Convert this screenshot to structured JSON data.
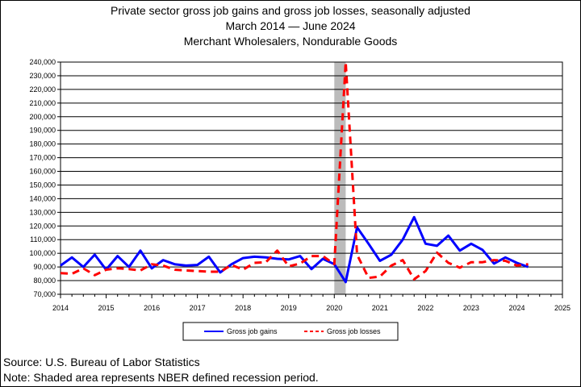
{
  "titles": {
    "line1": "Private sector gross job gains and gross job losses, seasonally adjusted",
    "line2": "March 2014  — June 2024",
    "line3": "Merchant Wholesalers, Nondurable Goods"
  },
  "footnotes": {
    "source": "Source: U.S. Bureau of Labor Statistics",
    "note": "Note: Shaded area represents NBER defined recession period."
  },
  "chart_data": {
    "type": "line",
    "title": "Private sector gross job gains and gross job losses, seasonally adjusted",
    "subtitle": "March 2014 — June 2024; Merchant Wholesalers, Nondurable Goods",
    "xlabel": "",
    "ylabel": "",
    "xlim": [
      2014,
      2025
    ],
    "ylim": [
      70000,
      240000
    ],
    "x_ticks": [
      2014,
      2015,
      2016,
      2017,
      2018,
      2019,
      2020,
      2021,
      2022,
      2023,
      2024,
      2025
    ],
    "y_ticks": [
      70000,
      80000,
      90000,
      100000,
      110000,
      120000,
      130000,
      140000,
      150000,
      160000,
      170000,
      180000,
      190000,
      200000,
      210000,
      220000,
      230000,
      240000
    ],
    "y_tick_labels": [
      "70,000",
      "80,000",
      "90,000",
      "100,000",
      "110,000",
      "120,000",
      "130,000",
      "140,000",
      "150,000",
      "160,000",
      "170,000",
      "180,000",
      "190,000",
      "200,000",
      "210,000",
      "220,000",
      "230,000",
      "240,000"
    ],
    "grid": "horizontal",
    "legend_position": "bottom",
    "recession": {
      "start": 2020.0,
      "end": 2020.25,
      "color": "#bbbbbb"
    },
    "x": [
      2014.0,
      2014.25,
      2014.5,
      2014.75,
      2015.0,
      2015.25,
      2015.5,
      2015.75,
      2016.0,
      2016.25,
      2016.5,
      2016.75,
      2017.0,
      2017.25,
      2017.5,
      2017.75,
      2018.0,
      2018.25,
      2018.5,
      2018.75,
      2019.0,
      2019.25,
      2019.5,
      2019.75,
      2020.0,
      2020.25,
      2020.5,
      2020.75,
      2021.0,
      2021.25,
      2021.5,
      2021.75,
      2022.0,
      2022.25,
      2022.5,
      2022.75,
      2023.0,
      2023.25,
      2023.5,
      2023.75,
      2024.0,
      2024.25
    ],
    "series": [
      {
        "name": "Gross job gains",
        "color": "#0000ff",
        "dash": "solid",
        "values": [
          91000,
          97000,
          90000,
          99000,
          88000,
          98000,
          90000,
          102000,
          89000,
          95000,
          92000,
          91000,
          91500,
          97500,
          86000,
          92000,
          96500,
          97500,
          97000,
          96000,
          95500,
          98000,
          88500,
          96000,
          92000,
          79000,
          119000,
          107000,
          94500,
          99000,
          110000,
          126500,
          107000,
          105500,
          113000,
          102000,
          107000,
          102500,
          92500,
          97000,
          93000,
          90000
        ]
      },
      {
        "name": "Gross job losses",
        "color": "#ff0000",
        "dash": "dashed",
        "values": [
          85500,
          85000,
          89000,
          84000,
          88000,
          89000,
          88500,
          87500,
          92000,
          91000,
          88000,
          87500,
          87000,
          86500,
          86500,
          91500,
          88000,
          93000,
          93500,
          102000,
          90500,
          92500,
          98000,
          98000,
          92000,
          240000,
          99000,
          82000,
          83000,
          91000,
          95000,
          81000,
          87000,
          100500,
          93000,
          89500,
          93500,
          93500,
          95000,
          94500,
          91000,
          92000
        ]
      }
    ]
  }
}
